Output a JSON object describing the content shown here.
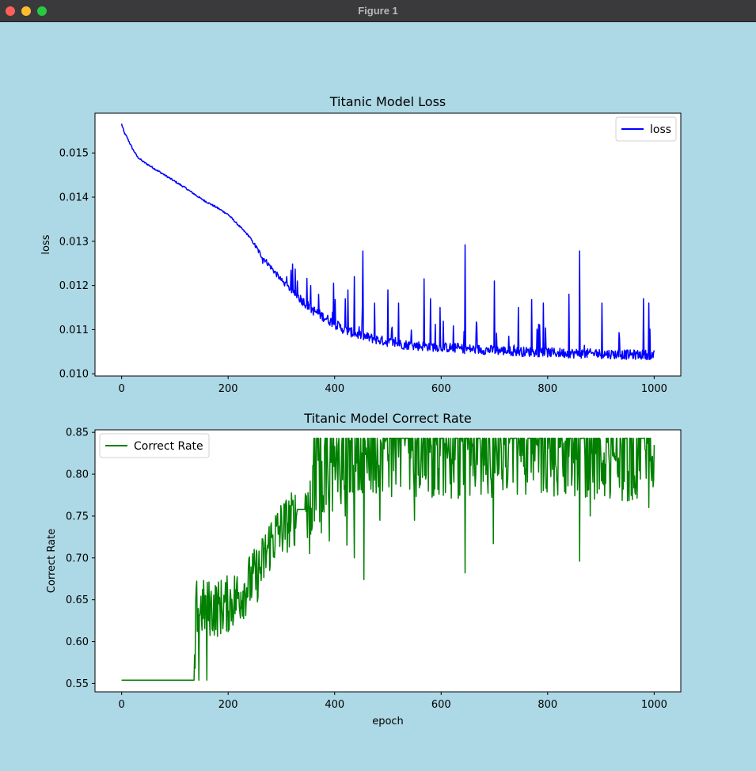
{
  "window": {
    "title": "Figure 1",
    "background": "#add8e6"
  },
  "chart_data": [
    {
      "type": "line",
      "title": "Titanic Model Loss",
      "xlabel": "",
      "ylabel": "loss",
      "xlim": [
        -50,
        1050
      ],
      "ylim": [
        0.00995,
        0.0159
      ],
      "xticks": [
        0,
        200,
        400,
        600,
        800,
        1000
      ],
      "xtick_labels": [
        "0",
        "200",
        "400",
        "600",
        "800",
        "1000"
      ],
      "yticks": [
        0.01,
        0.011,
        0.012,
        0.013,
        0.014,
        0.015
      ],
      "ytick_labels": [
        "0.010",
        "0.011",
        "0.012",
        "0.013",
        "0.014",
        "0.015"
      ],
      "legend": "upper right",
      "grid": false,
      "series": [
        {
          "name": "loss",
          "color": "#0000ff",
          "x": [
            0,
            5,
            10,
            20,
            30,
            40,
            60,
            80,
            100,
            120,
            150,
            180,
            200,
            220,
            240,
            260,
            280,
            300,
            320,
            340,
            360,
            380,
            400,
            420,
            440,
            460,
            480,
            500,
            530,
            560,
            600,
            650,
            700,
            750,
            800,
            850,
            900,
            950,
            1000
          ],
          "y": [
            0.01565,
            0.01545,
            0.01535,
            0.0151,
            0.0149,
            0.0148,
            0.01465,
            0.0145,
            0.01435,
            0.0142,
            0.01395,
            0.01375,
            0.0136,
            0.01335,
            0.0131,
            0.0127,
            0.0124,
            0.0121,
            0.01185,
            0.01162,
            0.0114,
            0.01125,
            0.0111,
            0.01095,
            0.01087,
            0.0108,
            0.01074,
            0.01069,
            0.01063,
            0.0106,
            0.01057,
            0.01053,
            0.0105,
            0.01047,
            0.01045,
            0.01043,
            0.01042,
            0.0104,
            0.0104
          ],
          "spikes": [
            {
              "x": 265,
              "y": 0.0125
            },
            {
              "x": 310,
              "y": 0.0122
            },
            {
              "x": 330,
              "y": 0.0121
            },
            {
              "x": 355,
              "y": 0.012
            },
            {
              "x": 370,
              "y": 0.0118
            },
            {
              "x": 398,
              "y": 0.01205
            },
            {
              "x": 420,
              "y": 0.0117
            },
            {
              "x": 425,
              "y": 0.0119
            },
            {
              "x": 437,
              "y": 0.0122
            },
            {
              "x": 453,
              "y": 0.01278
            },
            {
              "x": 475,
              "y": 0.0116
            },
            {
              "x": 500,
              "y": 0.0119
            },
            {
              "x": 520,
              "y": 0.0116
            },
            {
              "x": 568,
              "y": 0.01215
            },
            {
              "x": 580,
              "y": 0.0117
            },
            {
              "x": 598,
              "y": 0.0115
            },
            {
              "x": 645,
              "y": 0.01292
            },
            {
              "x": 700,
              "y": 0.0121
            },
            {
              "x": 745,
              "y": 0.0115
            },
            {
              "x": 770,
              "y": 0.01168
            },
            {
              "x": 792,
              "y": 0.0116
            },
            {
              "x": 840,
              "y": 0.0118
            },
            {
              "x": 860,
              "y": 0.01278
            },
            {
              "x": 902,
              "y": 0.0116
            },
            {
              "x": 980,
              "y": 0.0117
            },
            {
              "x": 990,
              "y": 0.0116
            }
          ]
        }
      ]
    },
    {
      "type": "line",
      "title": "Titanic Model Correct Rate",
      "xlabel": "epoch",
      "ylabel": "Correct Rate",
      "xlim": [
        -50,
        1050
      ],
      "ylim": [
        0.54,
        0.853
      ],
      "xticks": [
        0,
        200,
        400,
        600,
        800,
        1000
      ],
      "xtick_labels": [
        "0",
        "200",
        "400",
        "600",
        "800",
        "1000"
      ],
      "yticks": [
        0.55,
        0.6,
        0.65,
        0.7,
        0.75,
        0.8,
        0.85
      ],
      "ytick_labels": [
        "0.55",
        "0.60",
        "0.65",
        "0.70",
        "0.75",
        "0.80",
        "0.85"
      ],
      "legend": "upper left",
      "grid": false,
      "series": [
        {
          "name": "Correct Rate",
          "color": "#008000",
          "x": [
            0,
            100,
            137,
            140,
            160,
            180,
            200,
            220,
            240,
            260,
            280,
            300,
            320,
            340,
            350,
            360,
            380,
            400,
            420,
            440,
            460,
            480,
            500,
            550,
            600,
            650,
            700,
            750,
            800,
            850,
            900,
            950,
            1000
          ],
          "y": [
            0.554,
            0.554,
            0.554,
            0.64,
            0.64,
            0.64,
            0.645,
            0.655,
            0.67,
            0.685,
            0.72,
            0.735,
            0.745,
            0.758,
            0.758,
            0.77,
            0.79,
            0.8,
            0.81,
            0.815,
            0.82,
            0.82,
            0.815,
            0.815,
            0.81,
            0.81,
            0.815,
            0.81,
            0.815,
            0.815,
            0.81,
            0.81,
            0.82
          ],
          "spikes": [
            {
              "x": 145,
              "y": 0.554
            },
            {
              "x": 160,
              "y": 0.554
            },
            {
              "x": 353,
              "y": 0.705
            },
            {
              "x": 375,
              "y": 0.73
            },
            {
              "x": 390,
              "y": 0.72
            },
            {
              "x": 420,
              "y": 0.75
            },
            {
              "x": 423,
              "y": 0.715
            },
            {
              "x": 437,
              "y": 0.7
            },
            {
              "x": 455,
              "y": 0.674
            },
            {
              "x": 485,
              "y": 0.745
            },
            {
              "x": 550,
              "y": 0.745
            },
            {
              "x": 645,
              "y": 0.682
            },
            {
              "x": 698,
              "y": 0.717
            },
            {
              "x": 860,
              "y": 0.696
            },
            {
              "x": 880,
              "y": 0.75
            },
            {
              "x": 990,
              "y": 0.76
            }
          ]
        }
      ]
    }
  ]
}
